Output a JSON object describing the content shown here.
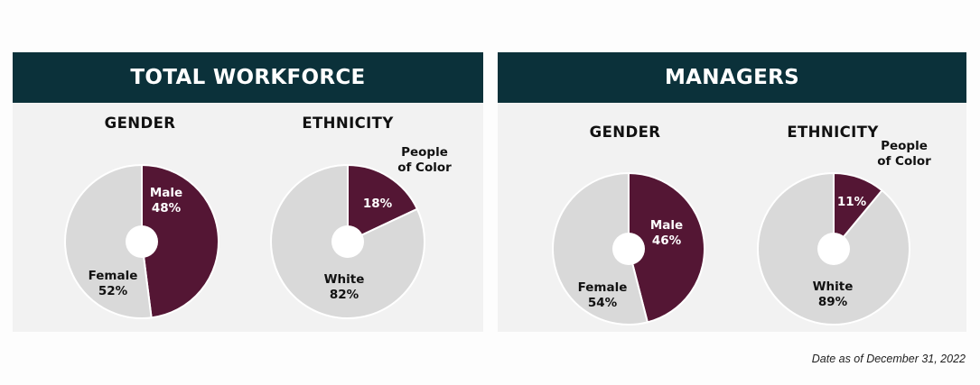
{
  "colors": {
    "header_bg": "#0b313a",
    "accent": "#541634",
    "neutral": "#d9d9d9",
    "panel_bg": "#f2f2f2"
  },
  "panels": [
    {
      "title": "TOTAL WORKFORCE",
      "gender_title": "GENDER",
      "ethnicity_title": "ETHNICITY"
    },
    {
      "title": "MANAGERS",
      "gender_title": "GENDER",
      "ethnicity_title": "ETHNICITY"
    }
  ],
  "footnote": "Date as of December 31, 2022",
  "chart_data": [
    {
      "type": "pie",
      "title": "GENDER",
      "group": "TOTAL WORKFORCE",
      "slices": [
        {
          "label": "Male",
          "value": 48,
          "display": "48%",
          "color": "#541634"
        },
        {
          "label": "Female",
          "value": 52,
          "display": "52%",
          "color": "#d9d9d9"
        }
      ]
    },
    {
      "type": "pie",
      "title": "ETHNICITY",
      "group": "TOTAL WORKFORCE",
      "slices": [
        {
          "label": "People of Color",
          "value": 18,
          "display": "18%",
          "color": "#541634"
        },
        {
          "label": "White",
          "value": 82,
          "display": "82%",
          "color": "#d9d9d9"
        }
      ]
    },
    {
      "type": "pie",
      "title": "GENDER",
      "group": "MANAGERS",
      "slices": [
        {
          "label": "Male",
          "value": 46,
          "display": "46%",
          "color": "#541634"
        },
        {
          "label": "Female",
          "value": 54,
          "display": "54%",
          "color": "#d9d9d9"
        }
      ]
    },
    {
      "type": "pie",
      "title": "ETHNICITY",
      "group": "MANAGERS",
      "slices": [
        {
          "label": "People of Color",
          "value": 11,
          "display": "11%",
          "color": "#541634"
        },
        {
          "label": "White",
          "value": 89,
          "display": "89%",
          "color": "#d9d9d9"
        }
      ]
    }
  ]
}
